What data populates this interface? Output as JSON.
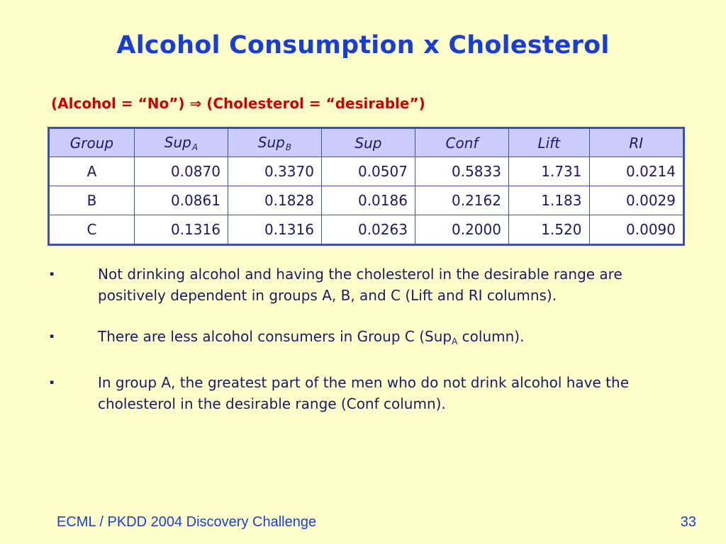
{
  "title": "Alcohol Consumption x Cholesterol",
  "subtitle": {
    "left": "(Alcohol = “No”)",
    "arrow": "⇒",
    "right": "(Cholesterol = “desirable”)"
  },
  "table": {
    "headers": [
      {
        "text": "Group",
        "sub": ""
      },
      {
        "text": "Sup",
        "sub": "A"
      },
      {
        "text": "Sup",
        "sub": "B"
      },
      {
        "text": "Sup",
        "sub": ""
      },
      {
        "text": "Conf",
        "sub": ""
      },
      {
        "text": "Lift",
        "sub": ""
      },
      {
        "text": "RI",
        "sub": ""
      }
    ],
    "rows": [
      [
        "A",
        "0.0870",
        "0.3370",
        "0.0507",
        "0.5833",
        "1.731",
        "0.0214"
      ],
      [
        "B",
        "0.0861",
        "0.1828",
        "0.0186",
        "0.2162",
        "1.183",
        "0.0029"
      ],
      [
        "C",
        "0.1316",
        "0.1316",
        "0.0263",
        "0.2000",
        "1.520",
        "0.0090"
      ]
    ]
  },
  "bullets": [
    {
      "marker": "▪",
      "text": "Not drinking alcohol and having the cholesterol in the desirable range are positively dependent in groups A, B, and C (Lift and RI columns)."
    },
    {
      "marker": "▪",
      "pre": "There are less alcohol consumers in Group C (Sup",
      "sub": "A",
      "post": " column)."
    },
    {
      "marker": "▪",
      "text": "In group A, the greatest part of the men who do not drink alcohol have the cholesterol in the desirable range (Conf column)."
    }
  ],
  "footer": {
    "left": "ECML / PKDD 2004 Discovery Challenge",
    "page_number": "33"
  },
  "colors": {
    "background": "#FFFFCC",
    "title": "#1A3DD6",
    "subtitle": "#CC0000",
    "header_fill": "#CCCCFF",
    "table_border": "#3E4FB0",
    "body_text": "#1A1A66"
  }
}
